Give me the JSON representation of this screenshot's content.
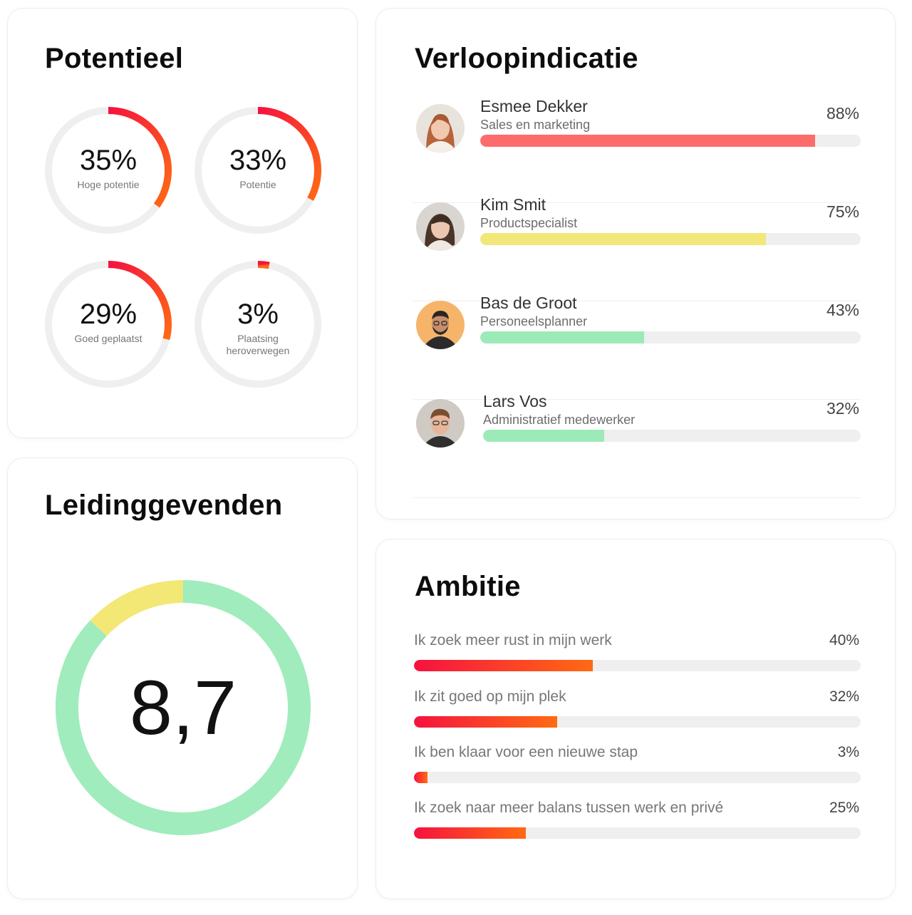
{
  "potentieel": {
    "title": "Potentieel",
    "rings": [
      {
        "value": "35%",
        "label": "Hoge potentie",
        "fraction": 0.35
      },
      {
        "value": "33%",
        "label": "Potentie",
        "fraction": 0.33
      },
      {
        "value": "29%",
        "label": "Goed geplaatst",
        "fraction": 0.29
      },
      {
        "value": "3%",
        "label": "Plaatsing heroverwegen",
        "fraction": 0.03
      }
    ]
  },
  "verloop": {
    "title": "Verloopindicatie",
    "people": [
      {
        "name": "Esmee Dekker",
        "role": "Sales en marketing",
        "pct": "88%",
        "fraction": 0.88,
        "bar_color": "#fd6b6b"
      },
      {
        "name": "Kim Smit",
        "role": "Productspecialist",
        "pct": "75%",
        "fraction": 0.75,
        "bar_color": "#f2e779"
      },
      {
        "name": "Bas de Groot",
        "role": "Personeelsplanner",
        "pct": "43%",
        "fraction": 0.43,
        "bar_color": "#9deab9"
      },
      {
        "name": "Lars Vos",
        "role": "Administratief medewerker",
        "pct": "32%",
        "fraction": 0.32,
        "bar_color": "#9deab9"
      }
    ]
  },
  "leidinggevenden": {
    "title": "Leidinggevenden",
    "score": "8,7",
    "segments": [
      {
        "fraction": 0.87,
        "color": "#a0ecbc"
      },
      {
        "fraction": 0.13,
        "color": "#f3e775"
      }
    ]
  },
  "ambitie": {
    "title": "Ambitie",
    "items": [
      {
        "label": "Ik zoek meer rust in mijn werk",
        "pct": "40%",
        "fraction": 0.4
      },
      {
        "label": "Ik zit goed op mijn plek",
        "pct": "32%",
        "fraction": 0.32
      },
      {
        "label": "Ik ben klaar voor een nieuwe stap",
        "pct": "3%",
        "fraction": 0.03
      },
      {
        "label": "Ik zoek naar meer balans tussen werk en privé",
        "pct": "25%",
        "fraction": 0.25
      }
    ]
  },
  "colors": {
    "ring_gradient_start": "#f5123f",
    "ring_gradient_end": "#ff6a13",
    "track": "#efefef"
  }
}
